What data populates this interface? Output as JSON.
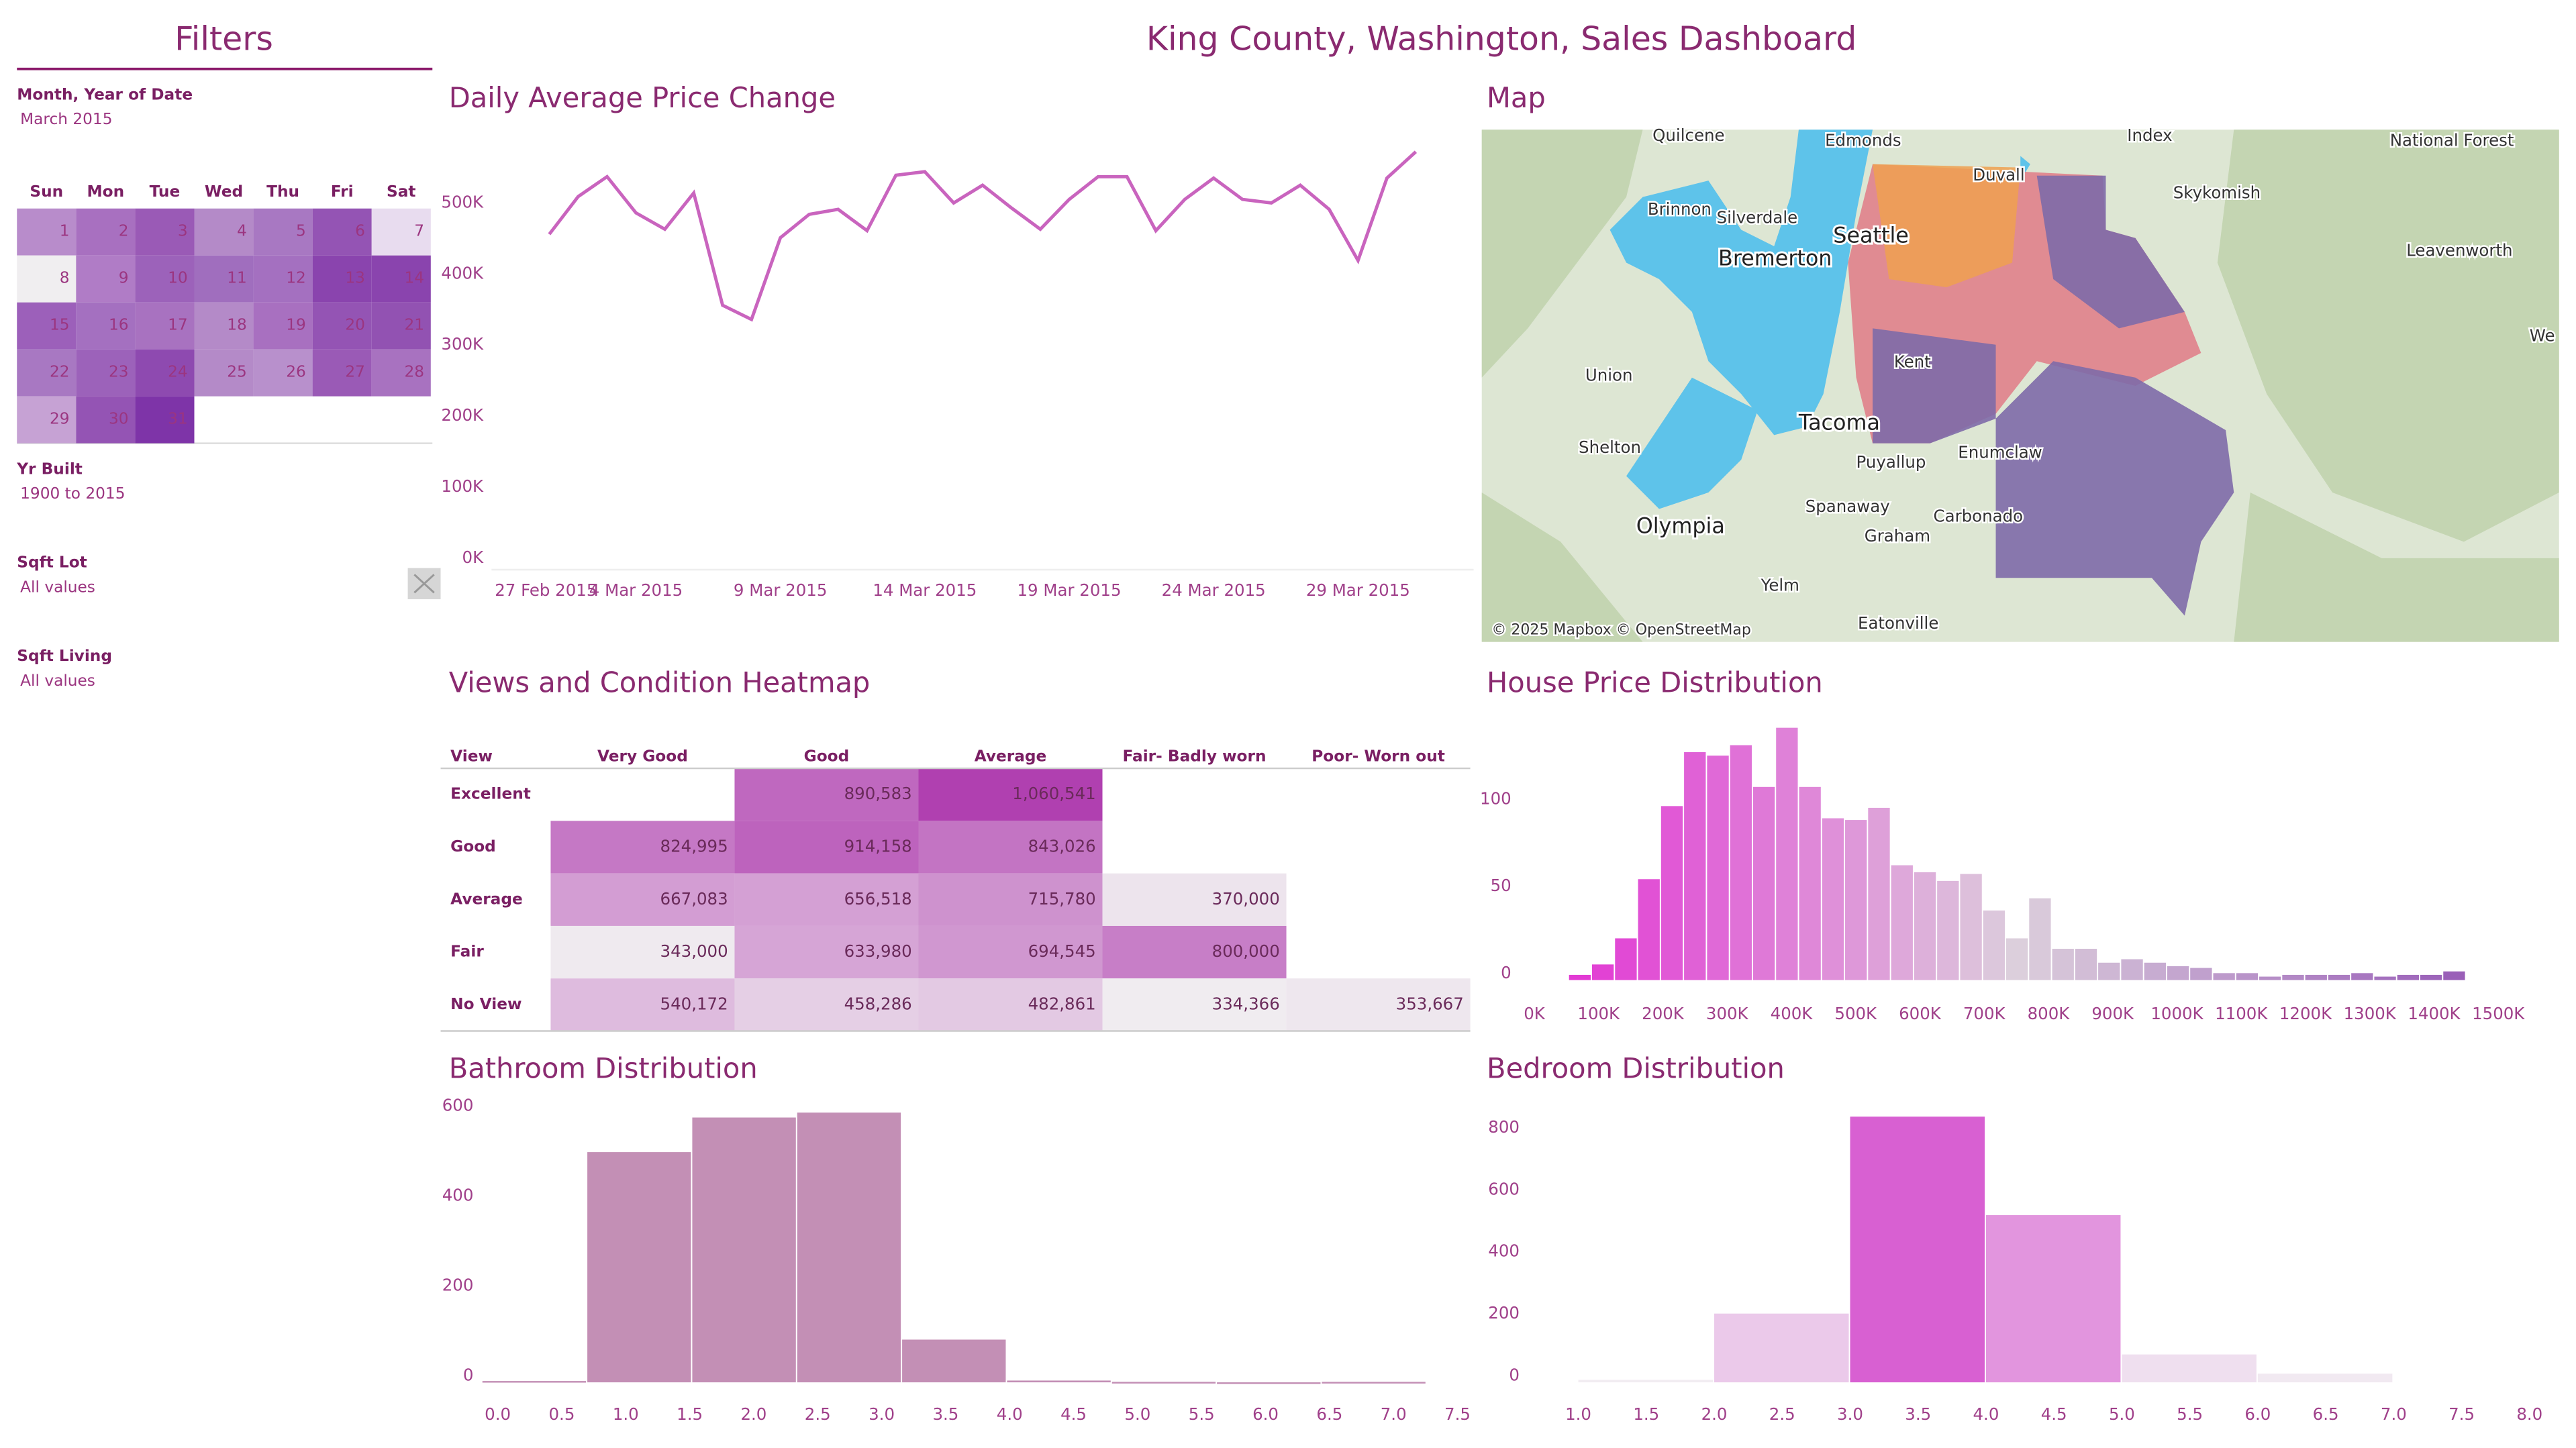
{
  "title": "King County, Washington, Sales Dashboard",
  "filters": {
    "title": "Filters",
    "month": {
      "label": "Month, Year of Date",
      "value": "March 2015"
    },
    "calendar": {
      "weekdays": [
        "Sun",
        "Mon",
        "Tue",
        "Wed",
        "Thu",
        "Fri",
        "Sat"
      ],
      "days": [
        1,
        2,
        3,
        4,
        5,
        6,
        7,
        8,
        9,
        10,
        11,
        12,
        13,
        14,
        15,
        16,
        17,
        18,
        19,
        20,
        21,
        22,
        23,
        24,
        25,
        26,
        27,
        28,
        29,
        30,
        31
      ],
      "colors": [
        "#b88ccb",
        "#a870c0",
        "#9a5ab6",
        "#b48ac8",
        "#a878c2",
        "#9454b4",
        "#e8dcef",
        "#f0eef0",
        "#b07cc6",
        "#9c62ba",
        "#a06ebe",
        "#a470c0",
        "#8a44ae",
        "#8a44ae",
        "#9c60ba",
        "#a470c0",
        "#a872c0",
        "#b48ac8",
        "#a870c0",
        "#9454b4",
        "#9252b2",
        "#a878c2",
        "#9c62ba",
        "#8e4ab0",
        "#b48ac8",
        "#b890cc",
        "#9a5ab6",
        "#a872c0",
        "#c6a2d4",
        "#9454b4",
        "#7e34a8"
      ]
    },
    "yr_built": {
      "label": "Yr Built",
      "value": "1900 to 2015"
    },
    "sqft_lot": {
      "label": "Sqft Lot",
      "value": "All values"
    },
    "sqft_living": {
      "label": "Sqft Living",
      "value": "All values"
    }
  },
  "map": {
    "title": "Map",
    "labels": [
      "Quilcene",
      "Edmonds",
      "Duvall",
      "Index",
      "National Forest",
      "Skykomish",
      "Brinnon",
      "Silverdale",
      "Bremerton",
      "Seattle",
      "Leavenworth",
      "Union",
      "Tacoma",
      "Kent",
      "Shelton",
      "Puyallup",
      "Enumclaw",
      "Olympia",
      "Spanaway",
      "Graham",
      "Carbonado",
      "Yelm",
      "Eatonville",
      "We"
    ],
    "attribution": "© 2025 Mapbox © OpenStreetMap"
  },
  "chart_data": [
    {
      "type": "line",
      "title": "Daily Average Price Change",
      "color": "#c964be",
      "x": [
        "2015-03-01",
        "2015-03-02",
        "2015-03-03",
        "2015-03-04",
        "2015-03-05",
        "2015-03-06",
        "2015-03-07",
        "2015-03-08",
        "2015-03-09",
        "2015-03-10",
        "2015-03-11",
        "2015-03-12",
        "2015-03-13",
        "2015-03-14",
        "2015-03-15",
        "2015-03-16",
        "2015-03-17",
        "2015-03-18",
        "2015-03-19",
        "2015-03-20",
        "2015-03-21",
        "2015-03-22",
        "2015-03-23",
        "2015-03-24",
        "2015-03-25",
        "2015-03-26",
        "2015-03-27",
        "2015-03-28",
        "2015-03-29",
        "2015-03-30",
        "2015-03-31"
      ],
      "values": [
        456000,
        509000,
        537000,
        486000,
        463000,
        514000,
        356000,
        336000,
        451000,
        484000,
        491000,
        461000,
        539000,
        544000,
        500000,
        525000,
        493000,
        463000,
        505000,
        537000,
        537000,
        461000,
        505000,
        535000,
        505000,
        500000,
        525000,
        491000,
        419000,
        535000,
        572000
      ],
      "xlim": [
        "2015-02-27",
        "2015-04-02"
      ],
      "xticks": [
        {
          "value": "2015-02-27",
          "label": "27 Feb 2015"
        },
        {
          "value": "2015-03-04",
          "label": "4 Mar 2015"
        },
        {
          "value": "2015-03-09",
          "label": "9 Mar 2015"
        },
        {
          "value": "2015-03-14",
          "label": "14 Mar 2015"
        },
        {
          "value": "2015-03-19",
          "label": "19 Mar 2015"
        },
        {
          "value": "2015-03-24",
          "label": "24 Mar 2015"
        },
        {
          "value": "2015-03-29",
          "label": "29 Mar 2015"
        }
      ],
      "ylim": [
        0,
        580000
      ],
      "yticks": [
        {
          "value": 0,
          "label": "0K"
        },
        {
          "value": 100000,
          "label": "100K"
        },
        {
          "value": 200000,
          "label": "200K"
        },
        {
          "value": 300000,
          "label": "300K"
        },
        {
          "value": 400000,
          "label": "400K"
        },
        {
          "value": 500000,
          "label": "500K"
        }
      ]
    },
    {
      "type": "heatmap",
      "title": "Views and Condition Heatmap",
      "row_label": "View",
      "columns": [
        "Very Good",
        "Good",
        "Average",
        "Fair- Badly worn",
        "Poor- Worn out"
      ],
      "rows": [
        "Excellent",
        "Good",
        "Average",
        "Fair",
        "No View"
      ],
      "values": [
        [
          null,
          890583,
          1060541,
          null,
          null
        ],
        [
          824995,
          914158,
          843026,
          null,
          null
        ],
        [
          667083,
          656518,
          715780,
          370000,
          null
        ],
        [
          343000,
          633980,
          694545,
          800000,
          null
        ],
        [
          540172,
          458286,
          482861,
          334366,
          353667
        ]
      ],
      "value_labels": [
        [
          null,
          "890,583",
          "1,060,541",
          null,
          null
        ],
        [
          "824,995",
          "914,158",
          "843,026",
          null,
          null
        ],
        [
          "667,083",
          "656,518",
          "715,780",
          "370,000",
          null
        ],
        [
          "343,000",
          "633,980",
          "694,545",
          "800,000",
          null
        ],
        [
          "540,172",
          "458,286",
          "482,861",
          "334,366",
          "353,667"
        ]
      ],
      "color_range": [
        "#f0ecf0",
        "#b040b0"
      ]
    },
    {
      "type": "histogram",
      "title": "House Price Distribution",
      "color_stops": [
        "#e23ad4",
        "#dccfdc",
        "#9a5fb8"
      ],
      "bins": [
        54000,
        89800,
        125600,
        161400,
        197200,
        233000,
        268800,
        304600,
        340400,
        376200,
        412000,
        447800,
        483600,
        519400,
        555200,
        591000,
        626800,
        662600,
        698400,
        734200,
        770000,
        805800,
        841600,
        877400,
        913200,
        949000,
        984800,
        1020600,
        1056400,
        1092200,
        1128000,
        1163800,
        1199600,
        1235400,
        1271200,
        1307000,
        1342800,
        1378600,
        1414400,
        1450200
      ],
      "values": [
        3,
        9,
        24,
        58,
        100,
        131,
        129,
        135,
        111,
        145,
        111,
        93,
        92,
        99,
        66,
        62,
        57,
        61,
        40,
        24,
        47,
        18,
        18,
        10,
        12,
        10,
        8,
        7,
        4,
        4,
        2,
        3,
        3,
        3,
        4,
        2,
        3,
        3,
        5
      ],
      "xlim": [
        0,
        1500000
      ],
      "xticks": [
        {
          "value": 0,
          "label": "0K"
        },
        {
          "value": 100000,
          "label": "100K"
        },
        {
          "value": 200000,
          "label": "200K"
        },
        {
          "value": 300000,
          "label": "300K"
        },
        {
          "value": 400000,
          "label": "400K"
        },
        {
          "value": 500000,
          "label": "500K"
        },
        {
          "value": 600000,
          "label": "600K"
        },
        {
          "value": 700000,
          "label": "700K"
        },
        {
          "value": 800000,
          "label": "800K"
        },
        {
          "value": 900000,
          "label": "900K"
        },
        {
          "value": 1000000,
          "label": "1000K"
        },
        {
          "value": 1100000,
          "label": "1100K"
        },
        {
          "value": 1200000,
          "label": "1200K"
        },
        {
          "value": 1300000,
          "label": "1300K"
        },
        {
          "value": 1400000,
          "label": "1400K"
        },
        {
          "value": 1500000,
          "label": "1500K"
        }
      ],
      "ylim": [
        0,
        150
      ],
      "yticks": [
        0,
        50,
        100
      ]
    },
    {
      "type": "histogram",
      "title": "Bathroom Distribution",
      "color": "#c38fb5",
      "bins": [
        -0.12,
        0.7,
        1.52,
        2.34,
        3.16,
        3.98,
        4.8,
        5.62,
        6.44,
        7.26
      ],
      "values": [
        3,
        512,
        589,
        600,
        95,
        4,
        1,
        0,
        1
      ],
      "xlim": [
        -0.1,
        7.6
      ],
      "xticks": [
        {
          "value": 0,
          "label": "0.0"
        },
        0.5,
        {
          "value": 1,
          "label": "1.0"
        },
        1.5,
        {
          "value": 2,
          "label": "2.0"
        },
        2.5,
        {
          "value": 3,
          "label": "3.0"
        },
        3.5,
        {
          "value": 4,
          "label": "4.0"
        },
        4.5,
        {
          "value": 5,
          "label": "5.0"
        },
        5.5,
        {
          "value": 6,
          "label": "6.0"
        },
        6.5,
        {
          "value": 7,
          "label": "7.0"
        },
        7.5
      ],
      "ylim": [
        0,
        650
      ],
      "yticks": [
        0,
        200,
        400,
        600
      ]
    },
    {
      "type": "histogram",
      "title": "Bedroom Distribution",
      "color_range": [
        "#f2eef2",
        "#d860d2"
      ],
      "bins": [
        1,
        2,
        3,
        4,
        5,
        6,
        7
      ],
      "values": [
        8,
        222,
        858,
        540,
        90,
        28
      ],
      "xlim": [
        0.93,
        8.06
      ],
      "xticks": [
        {
          "value": 1,
          "label": "1.0"
        },
        1.5,
        {
          "value": 2,
          "label": "2.0"
        },
        2.5,
        {
          "value": 3,
          "label": "3.0"
        },
        3.5,
        {
          "value": 4,
          "label": "4.0"
        },
        4.5,
        {
          "value": 5,
          "label": "5.0"
        },
        5.5,
        {
          "value": 6,
          "label": "6.0"
        },
        6.5,
        {
          "value": 7,
          "label": "7.0"
        },
        7.5,
        {
          "value": 8,
          "label": "8.0"
        }
      ],
      "ylim": [
        0,
        880
      ],
      "yticks": [
        0,
        200,
        400,
        600,
        800
      ]
    }
  ]
}
